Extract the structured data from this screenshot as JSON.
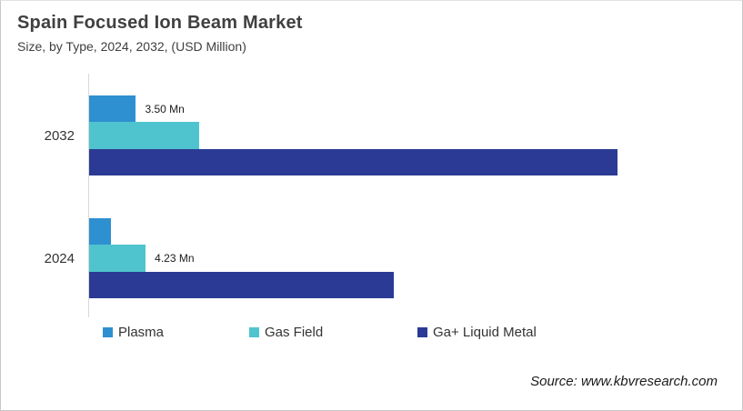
{
  "header": {
    "title": "Spain Focused Ion Beam Market",
    "subtitle": "Size, by Type, 2024, 2032, (USD Million)"
  },
  "chart_data": {
    "type": "bar",
    "orientation": "horizontal",
    "unit": "USD Million",
    "categories": [
      "2032",
      "2024"
    ],
    "series": [
      {
        "name": "Plasma",
        "color": "#2e90d0",
        "values": [
          3.5,
          1.65
        ],
        "labels": [
          "3.50 Mn",
          ""
        ]
      },
      {
        "name": "Gas Field",
        "color": "#4fc4ce",
        "values": [
          8.2,
          4.23
        ],
        "labels": [
          "",
          "4.23 Mn"
        ]
      },
      {
        "name": "Ga+ Liquid Metal",
        "color": "#2b3a94",
        "values": [
          39.5,
          22.8
        ],
        "labels": [
          "",
          ""
        ]
      }
    ],
    "xlim": [
      0,
      44
    ],
    "grid": false,
    "legend_position": "bottom",
    "axis_line_color": "#d9d9d9"
  },
  "source": {
    "text": "Source: www.kbvresearch.com"
  }
}
